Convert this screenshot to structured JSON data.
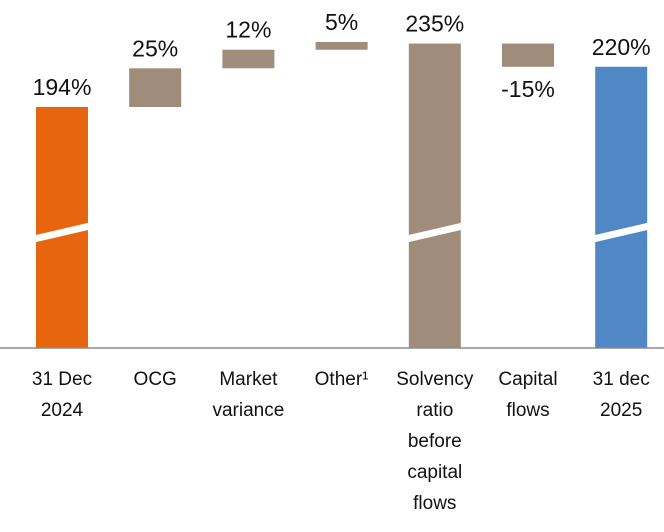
{
  "chart_data": {
    "type": "waterfall",
    "categories": [
      "31 Dec 2024",
      "OCG",
      "Market variance",
      "Other¹",
      "Solvency ratio before capital flows",
      "Capital flows",
      "31 dec 2025"
    ],
    "values": [
      194,
      25,
      12,
      5,
      235,
      -15,
      220
    ],
    "value_labels": [
      "194%",
      "25%",
      "12%",
      "5%",
      "235%",
      "-15%",
      "220%"
    ],
    "measure": [
      "absolute",
      "relative",
      "relative",
      "relative",
      "absolute",
      "relative",
      "absolute"
    ],
    "colors": [
      "#e8650f",
      "#a08c7a",
      "#a08c7a",
      "#a08c7a",
      "#a08c7a",
      "#a08c7a",
      "#5088c5"
    ],
    "axis_break": true
  }
}
